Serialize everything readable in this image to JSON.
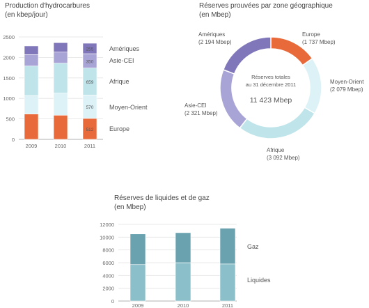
{
  "chart_data": [
    {
      "type": "bar",
      "title": "Production d'hydrocarbures",
      "subtitle": "(en kbep/jour)",
      "categories": [
        "2009",
        "2010",
        "2011"
      ],
      "ylim": [
        0,
        2500
      ],
      "yticks": [
        "0",
        "500",
        "1000",
        "1500",
        "2000",
        "2500"
      ],
      "series": [
        {
          "name": "Europe",
          "values": [
            620,
            590,
            512
          ],
          "color": "#e8693a"
        },
        {
          "name": "Moyen-Orient",
          "values": [
            450,
            540,
            570
          ],
          "color": "#ddf2f6"
        },
        {
          "name": "Afrique",
          "values": [
            720,
            730,
            659
          ],
          "color": "#bfe4ea"
        },
        {
          "name": "Asie-CEI",
          "values": [
            280,
            270,
            350
          ],
          "color": "#a9a4d6"
        },
        {
          "name": "Amériques",
          "values": [
            210,
            230,
            255
          ],
          "color": "#7f77b9"
        }
      ],
      "data_labels": [
        "512",
        "570",
        "659",
        "350",
        "255"
      ],
      "legend": [
        "Amériques",
        "Asie-CEI",
        "Afrique",
        "Moyen-Orient",
        "Europe"
      ]
    },
    {
      "type": "pie",
      "title": "Réserves prouvées par zone géographique",
      "subtitle": "(en Mbep)",
      "center_label_1": "Réserves totales",
      "center_label_2": "au 31 décembre 2011",
      "total": "11 423 Mbep",
      "slices": [
        {
          "name": "Europe",
          "value": 1737,
          "label": "(1 737 Mbep)",
          "color": "#e8693a"
        },
        {
          "name": "Moyen-Orient",
          "value": 2079,
          "label": "(2 079 Mbep)",
          "color": "#ddf2f6"
        },
        {
          "name": "Afrique",
          "value": 3092,
          "label": "(3 092 Mbep)",
          "color": "#bfe4ea"
        },
        {
          "name": "Asie-CEI",
          "value": 2321,
          "label": "(2 321 Mbep)",
          "color": "#a9a4d6"
        },
        {
          "name": "Amériques",
          "value": 2194,
          "label": "(2 194 Mbep)",
          "color": "#7f77b9"
        }
      ]
    },
    {
      "type": "bar",
      "title": "Réserves de liquides et de gaz",
      "subtitle": "(en Mbep)",
      "categories": [
        "2009",
        "2010",
        "2011"
      ],
      "ylim": [
        0,
        12000
      ],
      "yticks": [
        "0",
        "2000",
        "4000",
        "6000",
        "8000",
        "10000",
        "12000"
      ],
      "series": [
        {
          "name": "Liquides",
          "values": [
            5700,
            6000,
            5800
          ],
          "color": "#8bbfc9"
        },
        {
          "name": "Gaz",
          "values": [
            4800,
            4700,
            5600
          ],
          "color": "#6aa2b0"
        }
      ],
      "legend": [
        "Gaz",
        "Liquides"
      ]
    }
  ]
}
